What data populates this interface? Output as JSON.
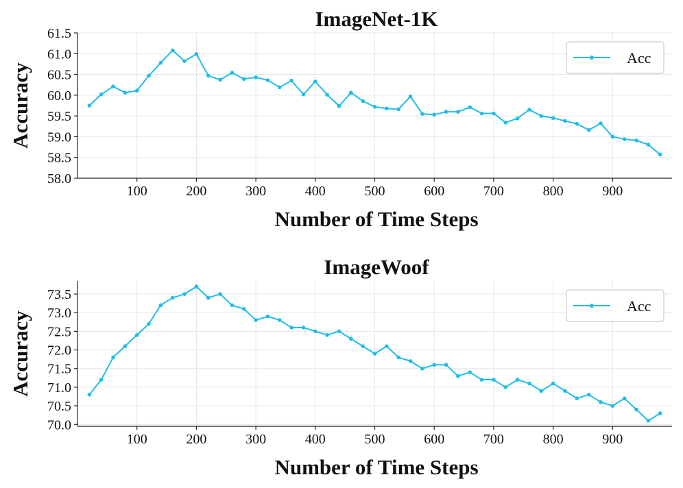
{
  "colors": {
    "series": "#1fbde8",
    "grid": "#e6e6e6",
    "axis": "#222222"
  },
  "chart_data": [
    {
      "type": "line",
      "title": "ImageNet-1K",
      "xlabel": "Number of Time Steps",
      "ylabel": "Accuracy",
      "xlim": [
        0,
        1000
      ],
      "ylim": [
        58.0,
        61.5
      ],
      "xticks": [
        100,
        200,
        300,
        400,
        500,
        600,
        700,
        800,
        900
      ],
      "yticks": [
        58.0,
        58.5,
        59.0,
        59.5,
        60.0,
        60.5,
        61.0,
        61.5
      ],
      "ytick_labels": [
        "58.0",
        "58.5",
        "59.0",
        "59.5",
        "60.0",
        "60.5",
        "61.0",
        "61.5"
      ],
      "grid": true,
      "legend_position": "top-right",
      "series": [
        {
          "name": "Acc",
          "x": [
            20,
            40,
            60,
            80,
            100,
            120,
            140,
            160,
            180,
            200,
            220,
            240,
            260,
            280,
            300,
            320,
            340,
            360,
            380,
            400,
            420,
            440,
            460,
            480,
            500,
            520,
            540,
            560,
            580,
            600,
            620,
            640,
            660,
            680,
            700,
            720,
            740,
            760,
            780,
            800,
            820,
            840,
            860,
            880,
            900,
            920,
            940,
            960,
            980
          ],
          "y": [
            59.75,
            60.02,
            60.21,
            60.06,
            60.11,
            60.47,
            60.78,
            61.08,
            60.82,
            60.99,
            60.47,
            60.37,
            60.54,
            60.39,
            60.43,
            60.36,
            60.19,
            60.35,
            60.02,
            60.33,
            60.01,
            59.74,
            60.06,
            59.86,
            59.72,
            59.68,
            59.66,
            59.97,
            59.55,
            59.53,
            59.6,
            59.6,
            59.71,
            59.56,
            59.56,
            59.34,
            59.44,
            59.65,
            59.5,
            59.45,
            59.38,
            59.31,
            59.16,
            59.32,
            59.0,
            58.94,
            58.91,
            58.81,
            58.57
          ]
        }
      ]
    },
    {
      "type": "line",
      "title": "ImageWoof",
      "xlabel": "Number of Time Steps",
      "ylabel": "Accuracy",
      "xlim": [
        0,
        1000
      ],
      "ylim": [
        69.95,
        73.85
      ],
      "xticks": [
        100,
        200,
        300,
        400,
        500,
        600,
        700,
        800,
        900
      ],
      "yticks": [
        70.0,
        70.5,
        71.0,
        71.5,
        72.0,
        72.5,
        73.0,
        73.5
      ],
      "ytick_labels": [
        "70.0",
        "70.5",
        "71.0",
        "71.5",
        "72.0",
        "72.5",
        "73.0",
        "73.5"
      ],
      "grid": true,
      "legend_position": "top-right",
      "series": [
        {
          "name": "Acc",
          "x": [
            20,
            40,
            60,
            80,
            100,
            120,
            140,
            160,
            180,
            200,
            220,
            240,
            260,
            280,
            300,
            320,
            340,
            360,
            380,
            400,
            420,
            440,
            460,
            480,
            500,
            520,
            540,
            560,
            580,
            600,
            620,
            640,
            660,
            680,
            700,
            720,
            740,
            760,
            780,
            800,
            820,
            840,
            860,
            880,
            900,
            920,
            940,
            960,
            980
          ],
          "y": [
            70.8,
            71.2,
            71.8,
            72.1,
            72.4,
            72.7,
            73.2,
            73.4,
            73.5,
            73.7,
            73.4,
            73.5,
            73.2,
            73.1,
            72.8,
            72.9,
            72.8,
            72.6,
            72.6,
            72.5,
            72.4,
            72.5,
            72.3,
            72.1,
            71.9,
            72.1,
            71.8,
            71.7,
            71.5,
            71.6,
            71.6,
            71.3,
            71.4,
            71.2,
            71.2,
            71.0,
            71.2,
            71.1,
            70.9,
            71.1,
            70.9,
            70.7,
            70.8,
            70.6,
            70.5,
            70.7,
            70.4,
            70.1,
            70.3
          ]
        }
      ]
    }
  ]
}
